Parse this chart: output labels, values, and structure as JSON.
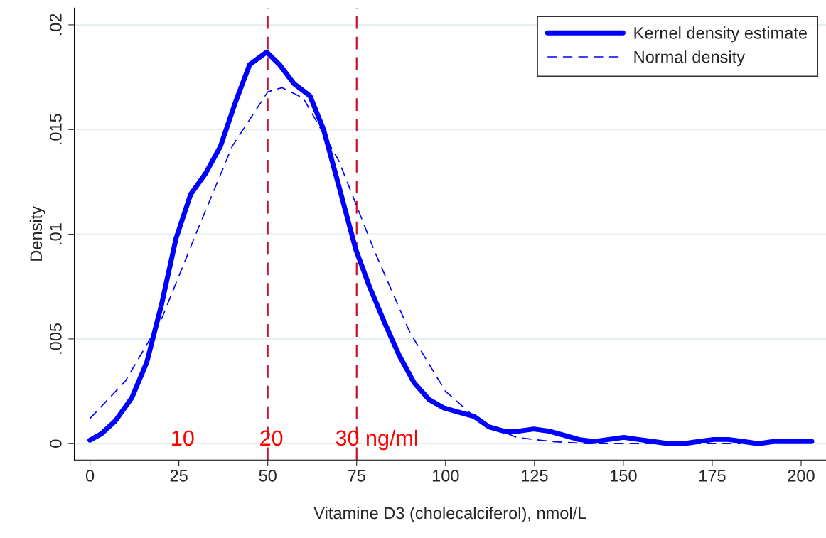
{
  "chart_data": {
    "type": "line",
    "xlabel": "Vitamine D3 (cholecalciferol), nmol/L",
    "ylabel": "Density",
    "xlim": [
      -4.4,
      207
    ],
    "ylim": [
      -0.00078,
      0.0208
    ],
    "xticks": [
      0,
      25,
      50,
      75,
      100,
      125,
      150,
      175,
      200
    ],
    "yticks": [
      {
        "value": 0,
        "label": "0"
      },
      {
        "value": 0.005,
        "label": ".005"
      },
      {
        "value": 0.01,
        "label": ".01"
      },
      {
        "value": 0.015,
        "label": ".015"
      },
      {
        "value": 0.02,
        "label": ".02"
      }
    ],
    "grid": "y",
    "legend": "top right",
    "series": [
      {
        "name": "Kernel density estimate",
        "color": "#0000ff",
        "line_style": "solid",
        "x": [
          0,
          3.2,
          7.2,
          11.8,
          16.0,
          20.2,
          24.2,
          28.3,
          32.5,
          36.7,
          40.9,
          44.9,
          49.7,
          53.3,
          57.3,
          61.9,
          65.7,
          70.0,
          74.7,
          78.6,
          82.8,
          87.0,
          91.2,
          95.4,
          99.6,
          103.8,
          108.0,
          112.2,
          116.4,
          120.6,
          124.8,
          129.1,
          133.3,
          137.5,
          141.7,
          145.9,
          150.1,
          154.3,
          158.5,
          162.7,
          166.9,
          171.1,
          175.4,
          179.6,
          183.8,
          188.0,
          192.2,
          196.4,
          203.0
        ],
        "values": [
          0.00017,
          0.00047,
          0.0011,
          0.0022,
          0.0039,
          0.0067,
          0.0098,
          0.0119,
          0.0129,
          0.0142,
          0.0163,
          0.0181,
          0.0187,
          0.0181,
          0.0172,
          0.0166,
          0.015,
          0.0123,
          0.0093,
          0.0075,
          0.0058,
          0.0042,
          0.0029,
          0.0021,
          0.0017,
          0.0015,
          0.0013,
          0.0008,
          0.0006,
          0.0006,
          0.0007,
          0.0006,
          0.0004,
          0.0002,
          0.0001,
          0.0002,
          0.0003,
          0.0002,
          0.0001,
          0.0,
          0.0,
          0.0001,
          0.0002,
          0.0002,
          0.0001,
          0.0,
          0.0001,
          0.0001,
          0.0001
        ]
      },
      {
        "name": "Normal density",
        "color": "#0000ff",
        "line_style": "dashed",
        "x": [
          0,
          10,
          20,
          30,
          40,
          50,
          54,
          60,
          70,
          80,
          90,
          100,
          110,
          120,
          130,
          140,
          160,
          183
        ],
        "values": [
          0.0012,
          0.003,
          0.0059,
          0.0101,
          0.0142,
          0.0168,
          0.017,
          0.0165,
          0.0135,
          0.0092,
          0.0053,
          0.0025,
          0.001,
          0.0003,
          0.0001,
          0.0,
          0.0,
          0.0
        ]
      }
    ],
    "ref_lines": [
      {
        "axis": "x",
        "value": 50,
        "color": "#c8102e",
        "line_style": "dashed"
      },
      {
        "axis": "x",
        "value": 75,
        "color": "#c8102e",
        "line_style": "dashed"
      }
    ],
    "annotations": [
      "10",
      "20",
      "30 ng/ml"
    ]
  }
}
